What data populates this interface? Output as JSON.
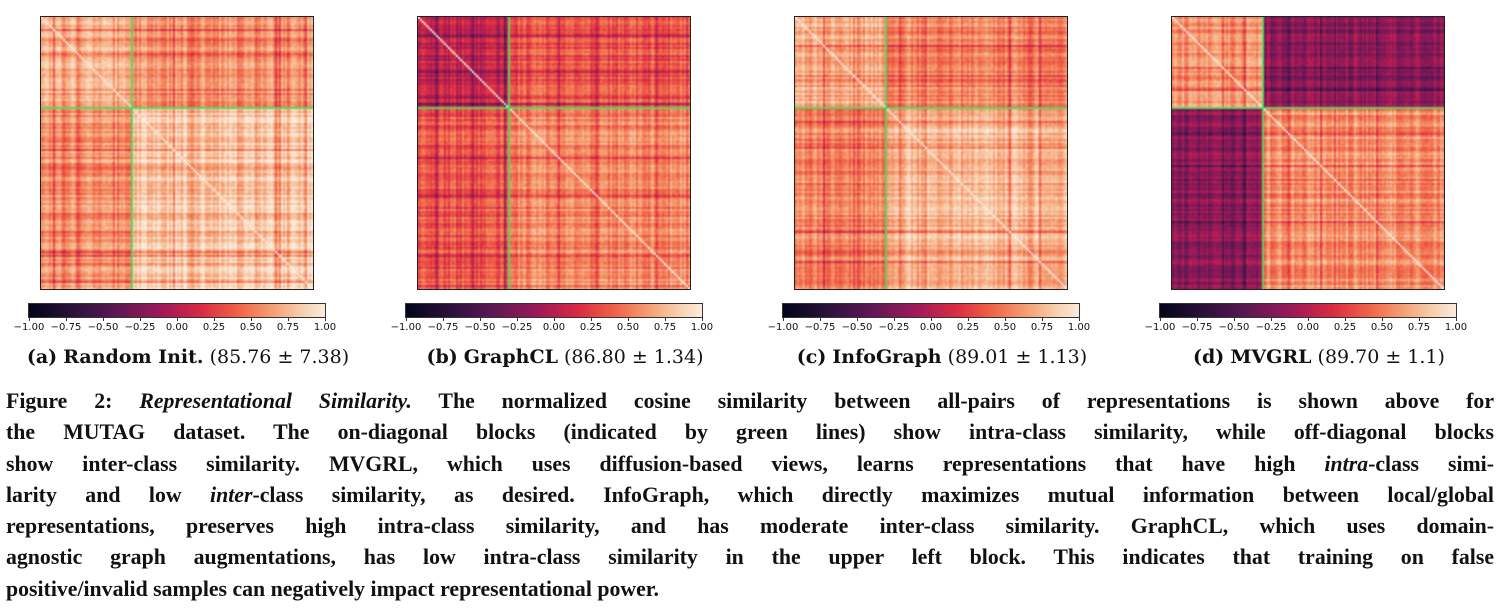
{
  "colorbar": {
    "ticks": [
      "−1.00",
      "−0.75",
      "−0.50",
      "−0.25",
      "0.00",
      "0.25",
      "0.50",
      "0.75",
      "1.00"
    ],
    "colormap": "rocket",
    "range": [
      -1.0,
      1.0
    ]
  },
  "separator_color": "#5fd35f",
  "panels": [
    {
      "label": "(a)",
      "method": "Random Init.",
      "score": "(85.76 ± 7.38)"
    },
    {
      "label": "(b)",
      "method": "GraphCL",
      "score": "(86.80 ± 1.34)"
    },
    {
      "label": "(c)",
      "method": "InfoGraph",
      "score": "(89.01 ± 1.13)"
    },
    {
      "label": "(d)",
      "method": "MVGRL",
      "score": "(89.70 ± 1.1)"
    }
  ],
  "chart_data": [
    {
      "type": "heatmap",
      "title": "",
      "xlabel": "",
      "ylabel": "",
      "value_range": [
        -1.0,
        1.0
      ],
      "grid": false,
      "class_split_fraction": 0.33,
      "block_mean_similarity": {
        "intra_upper_left": 0.78,
        "intra_lower_right": 0.82,
        "inter": 0.62
      }
    },
    {
      "type": "heatmap",
      "title": "",
      "xlabel": "",
      "ylabel": "",
      "value_range": [
        -1.0,
        1.0
      ],
      "grid": false,
      "class_split_fraction": 0.33,
      "block_mean_similarity": {
        "intra_upper_left": 0.05,
        "intra_lower_right": 0.55,
        "inter": 0.35
      }
    },
    {
      "type": "heatmap",
      "title": "",
      "xlabel": "",
      "ylabel": "",
      "value_range": [
        -1.0,
        1.0
      ],
      "grid": false,
      "class_split_fraction": 0.33,
      "block_mean_similarity": {
        "intra_upper_left": 0.72,
        "intra_lower_right": 0.75,
        "inter": 0.55
      }
    },
    {
      "type": "heatmap",
      "title": "",
      "xlabel": "",
      "ylabel": "",
      "value_range": [
        -1.0,
        1.0
      ],
      "grid": false,
      "class_split_fraction": 0.33,
      "block_mean_similarity": {
        "intra_upper_left": 0.55,
        "intra_lower_right": 0.6,
        "inter": -0.2
      }
    }
  ],
  "caption": {
    "line1_a": "Figure 2: ",
    "line1_b": "Representational Similarity.",
    "line1_c": " The normalized cosine similarity between all-pairs of representations is shown above for",
    "line2": "the MUTAG dataset. The on-diagonal blocks (indicated by green lines) show intra-class similarity, while off-diagonal blocks",
    "line3_a": "show inter-class similarity. MVGRL, which uses diffusion-based views, learns representations that have high ",
    "line3_b": "intra",
    "line3_c": "-class simi-",
    "line4_a": "larity and low ",
    "line4_b": "inter",
    "line4_c": "-class similarity, as desired. InfoGraph, which directly maximizes mutual information between local/global",
    "line5": "representations, preserves high intra-class similarity, and has moderate inter-class similarity. GraphCL, which uses domain-",
    "line6": "agnostic graph augmentations, has low intra-class similarity in the upper left block. This indicates that training on false",
    "line7": "positive/invalid samples can negatively impact representational power."
  }
}
